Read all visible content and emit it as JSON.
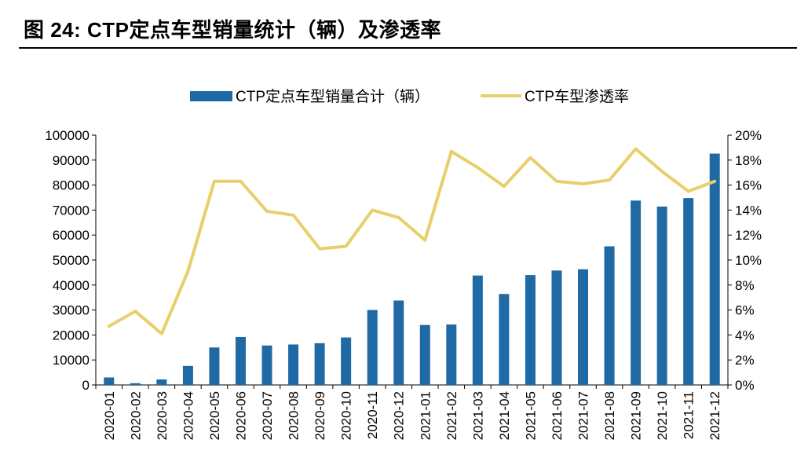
{
  "figure": {
    "title": "图  24:  CTP定点车型销量统计（辆）及渗透率"
  },
  "chart_data": {
    "type": "bar",
    "categories": [
      "2020-01",
      "2020-02",
      "2020-03",
      "2020-04",
      "2020-05",
      "2020-06",
      "2020-07",
      "2020-08",
      "2020-09",
      "2020-10",
      "2020-11",
      "2020-12",
      "2021-01",
      "2021-02",
      "2021-03",
      "2021-04",
      "2021-05",
      "2021-06",
      "2021-07",
      "2021-08",
      "2021-09",
      "2021-10",
      "2021-11",
      "2021-12"
    ],
    "series": [
      {
        "name": "CTP定点车型销量合计（辆）",
        "type": "bar",
        "axis": "left",
        "color": "#1f6aa5",
        "values": [
          3000,
          700,
          2200,
          7600,
          15000,
          19200,
          15800,
          16200,
          16700,
          19000,
          30000,
          33800,
          24000,
          24200,
          43800,
          36400,
          44000,
          45800,
          46300,
          55500,
          73800,
          71400,
          74800,
          92600
        ]
      },
      {
        "name": "CTP车型渗透率",
        "type": "line",
        "axis": "right",
        "color": "#e9cf6b",
        "values": [
          4.7,
          5.9,
          4.1,
          9.1,
          16.3,
          16.3,
          13.9,
          13.6,
          10.9,
          11.1,
          14.0,
          13.4,
          11.6,
          18.7,
          17.4,
          15.9,
          18.2,
          16.3,
          16.1,
          16.4,
          18.9,
          17.1,
          15.5,
          16.3
        ]
      }
    ],
    "y_left": {
      "lim": [
        0,
        100000
      ],
      "ticks": [
        "0",
        "10000",
        "20000",
        "30000",
        "40000",
        "50000",
        "60000",
        "70000",
        "80000",
        "90000",
        "100000"
      ]
    },
    "y_right": {
      "lim": [
        0,
        20
      ],
      "ticks": [
        "0%",
        "2%",
        "4%",
        "6%",
        "8%",
        "10%",
        "12%",
        "14%",
        "16%",
        "18%",
        "20%"
      ]
    },
    "legend_position": "top-center",
    "grid": false
  }
}
